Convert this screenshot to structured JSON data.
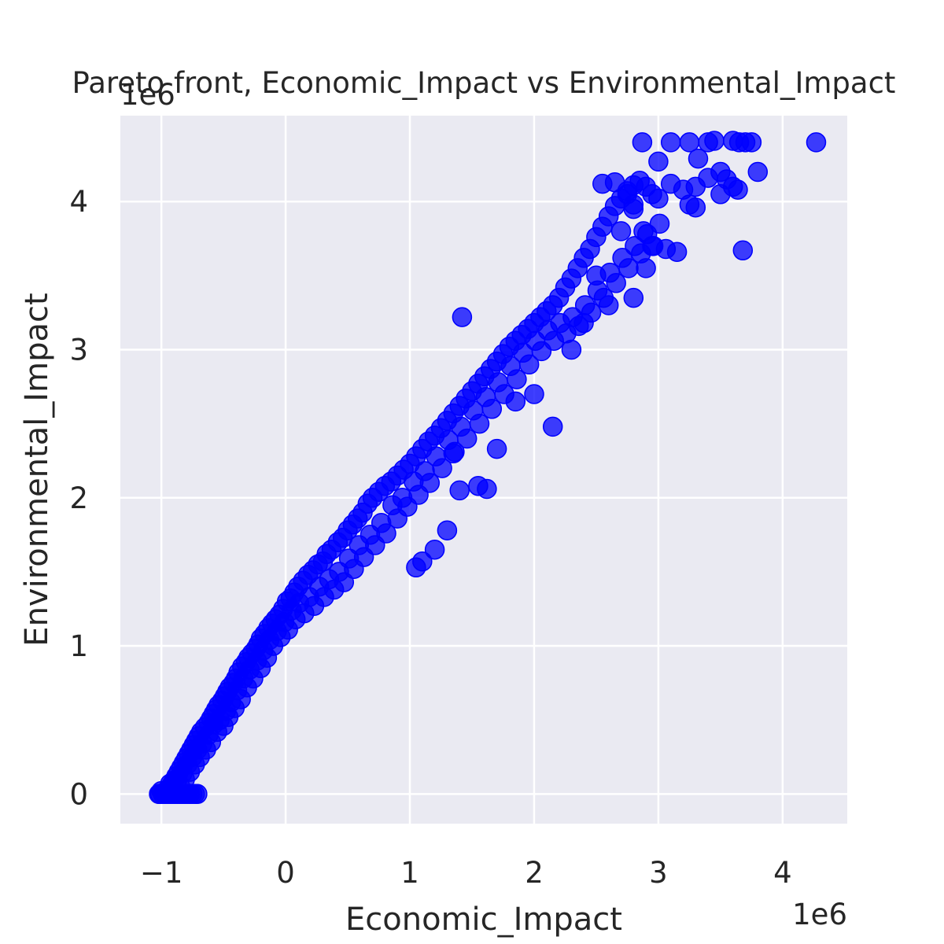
{
  "chart_data": {
    "type": "scatter",
    "title": "Pareto front, Economic_Impact vs Environmental_Impact",
    "xlabel": "Economic_Impact",
    "ylabel": "Environmental_Impact",
    "x_offset_label": "1e6",
    "y_offset_label": "1e6",
    "xlim": [
      -1330000,
      4520000
    ],
    "ylim": [
      -200000,
      4580000
    ],
    "x_ticks": [
      -1000000,
      0,
      1000000,
      2000000,
      3000000,
      4000000
    ],
    "x_tick_labels": [
      "−1",
      "0",
      "1",
      "2",
      "3",
      "4"
    ],
    "y_ticks": [
      0,
      1000000,
      2000000,
      3000000,
      4000000
    ],
    "y_tick_labels": [
      "0",
      "1",
      "2",
      "3",
      "4"
    ],
    "grid": true,
    "legend": "none",
    "colors": {
      "points": "#0000ff",
      "plot_background": "#eaeaf2",
      "grid": "#ffffff"
    },
    "series": [
      {
        "points": [
          [
            -1020000,
            0
          ],
          [
            -980000,
            10000
          ],
          [
            -950000,
            30000
          ],
          [
            -920000,
            60000
          ],
          [
            -900000,
            90000
          ],
          [
            -880000,
            120000
          ],
          [
            -860000,
            150000
          ],
          [
            -840000,
            180000
          ],
          [
            -820000,
            210000
          ],
          [
            -800000,
            240000
          ],
          [
            -780000,
            270000
          ],
          [
            -760000,
            300000
          ],
          [
            -740000,
            330000
          ],
          [
            -720000,
            360000
          ],
          [
            -700000,
            390000
          ],
          [
            -680000,
            420000
          ],
          [
            -650000,
            450000
          ],
          [
            -620000,
            480000
          ],
          [
            -600000,
            510000
          ],
          [
            -580000,
            540000
          ],
          [
            -560000,
            570000
          ],
          [
            -540000,
            600000
          ],
          [
            -510000,
            630000
          ],
          [
            -490000,
            660000
          ],
          [
            -470000,
            690000
          ],
          [
            -450000,
            720000
          ],
          [
            -420000,
            750000
          ],
          [
            -400000,
            780000
          ],
          [
            -380000,
            820000
          ],
          [
            -350000,
            860000
          ],
          [
            -320000,
            890000
          ],
          [
            -300000,
            920000
          ],
          [
            -270000,
            950000
          ],
          [
            -240000,
            980000
          ],
          [
            -220000,
            1010000
          ],
          [
            -200000,
            1050000
          ],
          [
            -170000,
            1080000
          ],
          [
            -140000,
            1120000
          ],
          [
            -110000,
            1150000
          ],
          [
            -80000,
            1180000
          ],
          [
            -50000,
            1210000
          ],
          [
            -20000,
            1250000
          ],
          [
            10000,
            1300000
          ],
          [
            40000,
            1320000
          ],
          [
            70000,
            1360000
          ],
          [
            100000,
            1400000
          ],
          [
            140000,
            1440000
          ],
          [
            180000,
            1480000
          ],
          [
            220000,
            1510000
          ],
          [
            260000,
            1550000
          ],
          [
            300000,
            1570000
          ],
          [
            330000,
            1620000
          ],
          [
            370000,
            1650000
          ],
          [
            420000,
            1700000
          ],
          [
            460000,
            1730000
          ],
          [
            500000,
            1780000
          ],
          [
            540000,
            1820000
          ],
          [
            580000,
            1860000
          ],
          [
            620000,
            1900000
          ],
          [
            660000,
            1960000
          ],
          [
            700000,
            2000000
          ],
          [
            750000,
            2040000
          ],
          [
            800000,
            2080000
          ],
          [
            850000,
            2110000
          ],
          [
            900000,
            2150000
          ],
          [
            950000,
            2190000
          ],
          [
            1000000,
            2230000
          ],
          [
            1050000,
            2280000
          ],
          [
            1100000,
            2330000
          ],
          [
            1150000,
            2380000
          ],
          [
            1200000,
            2420000
          ],
          [
            1250000,
            2470000
          ],
          [
            1300000,
            2520000
          ],
          [
            1350000,
            2570000
          ],
          [
            1400000,
            2620000
          ],
          [
            1450000,
            2670000
          ],
          [
            1500000,
            2720000
          ],
          [
            1550000,
            2770000
          ],
          [
            1600000,
            2820000
          ],
          [
            1650000,
            2870000
          ],
          [
            1700000,
            2920000
          ],
          [
            1750000,
            2970000
          ],
          [
            1800000,
            3020000
          ],
          [
            1850000,
            3060000
          ],
          [
            1900000,
            3100000
          ],
          [
            1950000,
            3140000
          ],
          [
            2000000,
            3180000
          ],
          [
            2050000,
            3220000
          ],
          [
            2100000,
            3260000
          ],
          [
            2150000,
            3300000
          ],
          [
            2200000,
            3350000
          ],
          [
            2250000,
            3420000
          ],
          [
            2300000,
            3480000
          ],
          [
            2350000,
            3550000
          ],
          [
            2400000,
            3620000
          ],
          [
            2450000,
            3680000
          ],
          [
            2500000,
            3760000
          ],
          [
            2550000,
            3830000
          ],
          [
            2600000,
            3900000
          ],
          [
            2650000,
            3970000
          ],
          [
            2700000,
            4020000
          ],
          [
            2750000,
            4070000
          ],
          [
            2800000,
            4110000
          ],
          [
            2850000,
            4140000
          ],
          [
            2900000,
            4100000
          ],
          [
            2950000,
            4050000
          ],
          [
            3000000,
            4020000
          ],
          [
            3100000,
            4120000
          ],
          [
            3200000,
            4080000
          ],
          [
            3300000,
            4100000
          ],
          [
            3400000,
            4160000
          ],
          [
            3500000,
            4200000
          ],
          [
            3600000,
            4100000
          ],
          [
            3700000,
            4400000
          ],
          [
            3750000,
            4400000
          ],
          [
            -1000000,
            20000
          ],
          [
            -960000,
            5000
          ],
          [
            -930000,
            70000
          ],
          [
            -900000,
            40000
          ],
          [
            -870000,
            100000
          ],
          [
            -850000,
            60000
          ],
          [
            -830000,
            140000
          ],
          [
            -810000,
            100000
          ],
          [
            -790000,
            200000
          ],
          [
            -770000,
            150000
          ],
          [
            -750000,
            250000
          ],
          [
            -730000,
            200000
          ],
          [
            -710000,
            300000
          ],
          [
            -690000,
            250000
          ],
          [
            -670000,
            340000
          ],
          [
            -640000,
            300000
          ],
          [
            -620000,
            400000
          ],
          [
            -600000,
            350000
          ],
          [
            -580000,
            470000
          ],
          [
            -550000,
            420000
          ],
          [
            -530000,
            500000
          ],
          [
            -500000,
            460000
          ],
          [
            -480000,
            560000
          ],
          [
            -460000,
            520000
          ],
          [
            -440000,
            620000
          ],
          [
            -410000,
            580000
          ],
          [
            -390000,
            700000
          ],
          [
            -360000,
            640000
          ],
          [
            -340000,
            780000
          ],
          [
            -310000,
            720000
          ],
          [
            -290000,
            840000
          ],
          [
            -260000,
            780000
          ],
          [
            -230000,
            900000
          ],
          [
            -200000,
            850000
          ],
          [
            -180000,
            970000
          ],
          [
            -150000,
            920000
          ],
          [
            -130000,
            1040000
          ],
          [
            -100000,
            1000000
          ],
          [
            -70000,
            1100000
          ],
          [
            -40000,
            1060000
          ],
          [
            -10000,
            1160000
          ],
          [
            20000,
            1110000
          ],
          [
            50000,
            1240000
          ],
          [
            80000,
            1180000
          ],
          [
            110000,
            1290000
          ],
          [
            150000,
            1220000
          ],
          [
            190000,
            1330000
          ],
          [
            230000,
            1270000
          ],
          [
            270000,
            1400000
          ],
          [
            310000,
            1330000
          ],
          [
            350000,
            1450000
          ],
          [
            390000,
            1380000
          ],
          [
            430000,
            1500000
          ],
          [
            470000,
            1430000
          ],
          [
            510000,
            1590000
          ],
          [
            550000,
            1520000
          ],
          [
            590000,
            1680000
          ],
          [
            630000,
            1600000
          ],
          [
            680000,
            1750000
          ],
          [
            720000,
            1680000
          ],
          [
            770000,
            1830000
          ],
          [
            810000,
            1760000
          ],
          [
            860000,
            1950000
          ],
          [
            900000,
            1860000
          ],
          [
            940000,
            2000000
          ],
          [
            980000,
            1940000
          ],
          [
            1030000,
            2110000
          ],
          [
            1070000,
            2020000
          ],
          [
            1120000,
            2180000
          ],
          [
            1160000,
            2100000
          ],
          [
            1210000,
            2280000
          ],
          [
            1260000,
            2200000
          ],
          [
            1310000,
            2390000
          ],
          [
            1360000,
            2310000
          ],
          [
            1410000,
            2480000
          ],
          [
            1460000,
            2400000
          ],
          [
            1510000,
            2590000
          ],
          [
            1560000,
            2500000
          ],
          [
            1610000,
            2680000
          ],
          [
            1660000,
            2600000
          ],
          [
            1710000,
            2780000
          ],
          [
            1760000,
            2700000
          ],
          [
            1810000,
            2890000
          ],
          [
            1860000,
            2800000
          ],
          [
            1910000,
            2980000
          ],
          [
            1960000,
            2900000
          ],
          [
            2010000,
            3060000
          ],
          [
            2060000,
            2990000
          ],
          [
            2110000,
            3130000
          ],
          [
            2160000,
            3060000
          ],
          [
            2210000,
            3180000
          ],
          [
            2260000,
            3110000
          ],
          [
            2310000,
            3220000
          ],
          [
            2360000,
            3160000
          ],
          [
            2410000,
            3300000
          ],
          [
            2460000,
            3250000
          ],
          [
            2510000,
            3400000
          ],
          [
            2560000,
            3350000
          ],
          [
            2610000,
            3520000
          ],
          [
            2660000,
            3450000
          ],
          [
            2710000,
            3620000
          ],
          [
            2760000,
            3550000
          ],
          [
            2810000,
            3700000
          ],
          [
            2860000,
            3650000
          ],
          [
            2910000,
            3780000
          ],
          [
            2960000,
            3700000
          ],
          [
            3010000,
            3850000
          ],
          [
            3060000,
            3680000
          ],
          [
            -1010000,
            0
          ],
          [
            -990000,
            0
          ],
          [
            -970000,
            0
          ],
          [
            -950000,
            0
          ],
          [
            -930000,
            0
          ],
          [
            -910000,
            0
          ],
          [
            -890000,
            0
          ],
          [
            -870000,
            0
          ],
          [
            -850000,
            0
          ],
          [
            -830000,
            0
          ],
          [
            -810000,
            0
          ],
          [
            -790000,
            0
          ],
          [
            -770000,
            0
          ],
          [
            -750000,
            0
          ],
          [
            -730000,
            0
          ],
          [
            -710000,
            0
          ],
          [
            1420000,
            3220000
          ],
          [
            2150000,
            2480000
          ],
          [
            3680000,
            3670000
          ],
          [
            1620000,
            2060000
          ],
          [
            1550000,
            2080000
          ],
          [
            1050000,
            1530000
          ],
          [
            1100000,
            1570000
          ],
          [
            1350000,
            2300000
          ],
          [
            1700000,
            2330000
          ],
          [
            1400000,
            2050000
          ],
          [
            1200000,
            1650000
          ],
          [
            1300000,
            1780000
          ],
          [
            1850000,
            2650000
          ],
          [
            2000000,
            2700000
          ],
          [
            2300000,
            3000000
          ],
          [
            2400000,
            3180000
          ],
          [
            2600000,
            3300000
          ],
          [
            2800000,
            3350000
          ],
          [
            2900000,
            3550000
          ],
          [
            2500000,
            3500000
          ],
          [
            2700000,
            3800000
          ],
          [
            2800000,
            3950000
          ],
          [
            2550000,
            4120000
          ],
          [
            2650000,
            4130000
          ],
          [
            3100000,
            4400000
          ],
          [
            3400000,
            4400000
          ],
          [
            3450000,
            4410000
          ],
          [
            3600000,
            4410000
          ],
          [
            3650000,
            4400000
          ],
          [
            3250000,
            4400000
          ],
          [
            3320000,
            4290000
          ],
          [
            3000000,
            4270000
          ],
          [
            2870000,
            4400000
          ],
          [
            4270000,
            4400000
          ],
          [
            3800000,
            4200000
          ],
          [
            3640000,
            4080000
          ],
          [
            3250000,
            3980000
          ],
          [
            3150000,
            3660000
          ],
          [
            3300000,
            3960000
          ],
          [
            3500000,
            4050000
          ],
          [
            3550000,
            4150000
          ],
          [
            2950000,
            3700000
          ],
          [
            2800000,
            3980000
          ],
          [
            2880000,
            3800000
          ],
          [
            2750000,
            4050000
          ]
        ]
      }
    ]
  }
}
